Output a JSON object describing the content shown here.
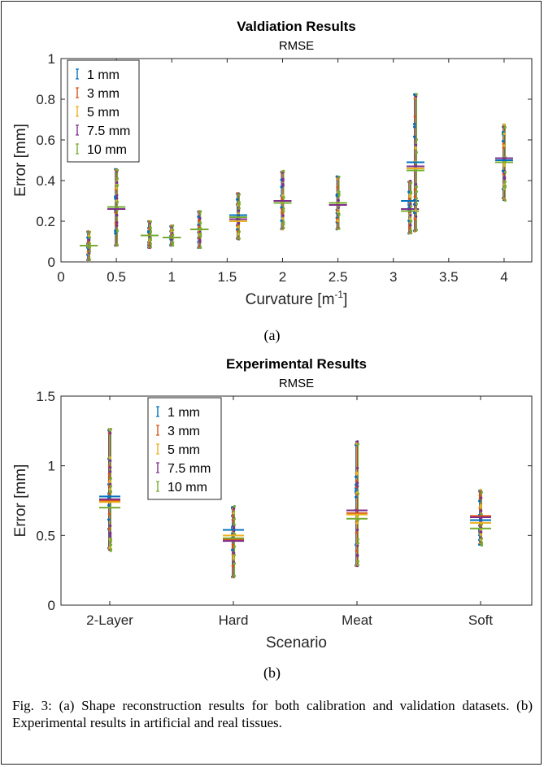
{
  "caption": "Fig. 3: (a) Shape reconstruction results for both calibration and validation datasets. (b) Experimental results in artificial and real tissues.",
  "sublabels": [
    "(a)",
    "(b)"
  ],
  "colors": {
    "1 mm": "#0072BD",
    "3 mm": "#D95319",
    "5 mm": "#EDB120",
    "7.5 mm": "#7E2F8E",
    "10 mm": "#77AC30"
  },
  "chart_data": [
    {
      "type": "scatter",
      "title": "Valdiation Results",
      "subtitle": "RMSE",
      "xlabel": "Curvature [m",
      "xlabel_sup": "-1",
      "xlabel_end": "]",
      "ylabel": "Error [mm]",
      "xlim": [
        0,
        4.25
      ],
      "ylim": [
        0,
        1
      ],
      "xticks": [
        0,
        0.5,
        1,
        1.5,
        2,
        2.5,
        3,
        3.5,
        4
      ],
      "yticks": [
        0,
        0.2,
        0.4,
        0.6,
        0.8,
        1
      ],
      "grid": false,
      "legend": "top-left",
      "legend_entries": [
        "1 mm",
        "3 mm",
        "5 mm",
        "7.5 mm",
        "10 mm"
      ],
      "groups": [
        {
          "x": 0.25,
          "min": 0.01,
          "max": 0.15,
          "means": [
            0.08,
            0.08,
            0.08,
            0.08,
            0.08
          ]
        },
        {
          "x": 0.5,
          "min": 0.08,
          "max": 0.46,
          "means": [
            0.27,
            0.26,
            0.26,
            0.26,
            0.27
          ]
        },
        {
          "x": 0.8,
          "min": 0.07,
          "max": 0.2,
          "means": [
            0.13,
            0.13,
            0.13,
            0.13,
            0.13
          ]
        },
        {
          "x": 1.0,
          "min": 0.08,
          "max": 0.18,
          "means": [
            0.12,
            0.12,
            0.12,
            0.12,
            0.12
          ]
        },
        {
          "x": 1.25,
          "min": 0.07,
          "max": 0.25,
          "means": [
            0.16,
            0.16,
            0.16,
            0.16,
            0.16
          ]
        },
        {
          "x": 1.6,
          "min": 0.11,
          "max": 0.34,
          "means": [
            0.23,
            0.21,
            0.2,
            0.21,
            0.22
          ]
        },
        {
          "x": 2.0,
          "min": 0.16,
          "max": 0.45,
          "means": [
            0.3,
            0.3,
            0.3,
            0.3,
            0.29
          ]
        },
        {
          "x": 2.5,
          "min": 0.16,
          "max": 0.42,
          "means": [
            0.29,
            0.28,
            0.28,
            0.28,
            0.29
          ]
        },
        {
          "x": 3.15,
          "min": 0.14,
          "max": 0.4,
          "means": [
            0.3,
            0.26,
            0.25,
            0.26,
            0.25
          ]
        },
        {
          "x": 3.2,
          "min": 0.15,
          "max": 0.83,
          "means": [
            0.49,
            0.46,
            0.46,
            0.47,
            0.45
          ]
        },
        {
          "x": 4.0,
          "min": 0.3,
          "max": 0.68,
          "means": [
            0.5,
            0.49,
            0.49,
            0.51,
            0.49
          ]
        }
      ]
    },
    {
      "type": "scatter",
      "title": "Experimental Results",
      "subtitle": "RMSE",
      "xlabel": "Scenario",
      "ylabel": "Error [mm]",
      "categories": [
        "2-Layer",
        "Hard",
        "Meat",
        "Soft"
      ],
      "ylim": [
        0,
        1.5
      ],
      "yticks": [
        0,
        0.5,
        1,
        1.5
      ],
      "ytick_labels": [
        "0",
        "0.5",
        "1",
        "1.5"
      ],
      "grid": false,
      "legend": "top-left",
      "legend_entries": [
        "1 mm",
        "3 mm",
        "5 mm",
        "7.5 mm",
        "10 mm"
      ],
      "groups": [
        {
          "category": "2-Layer",
          "min": 0.39,
          "max": 1.27,
          "means": [
            0.78,
            0.75,
            0.74,
            0.76,
            0.7
          ]
        },
        {
          "category": "Hard",
          "min": 0.2,
          "max": 0.71,
          "means": [
            0.54,
            0.47,
            0.5,
            0.46,
            0.48
          ]
        },
        {
          "category": "Meat",
          "min": 0.28,
          "max": 1.18,
          "means": [
            0.68,
            0.66,
            0.65,
            0.68,
            0.62
          ]
        },
        {
          "category": "Soft",
          "min": 0.43,
          "max": 0.83,
          "means": [
            0.61,
            0.64,
            0.59,
            0.63,
            0.55
          ]
        }
      ]
    }
  ]
}
